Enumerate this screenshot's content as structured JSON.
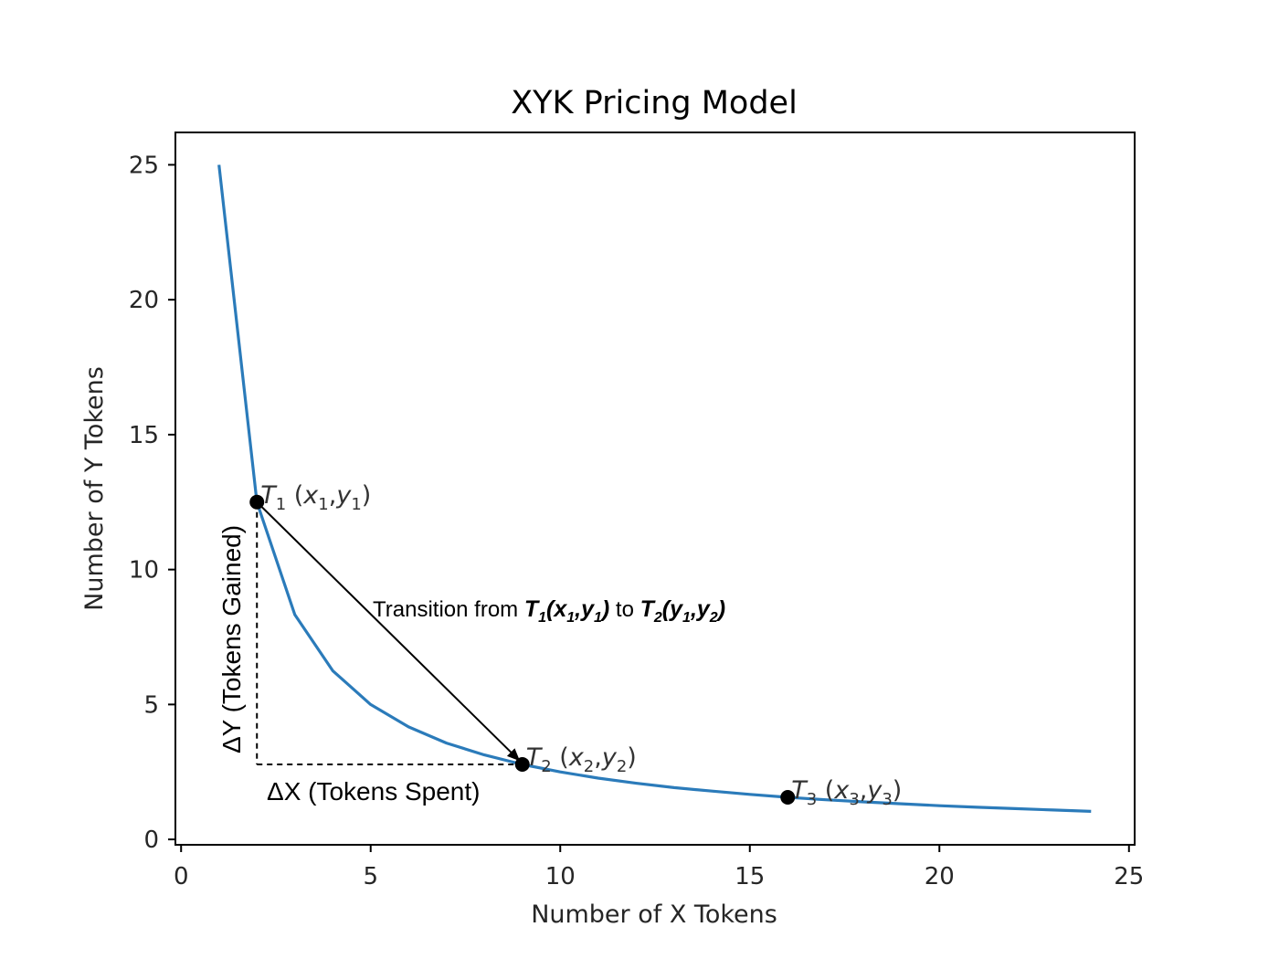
{
  "chart_data": {
    "type": "line",
    "title": "XYK Pricing Model",
    "xlabel": "Number of X Tokens",
    "ylabel": "Number of Y Tokens",
    "xlim": [
      -0.15,
      25.15
    ],
    "ylim": [
      -0.2,
      26.2
    ],
    "xticks": [
      "0",
      "5",
      "10",
      "15",
      "20",
      "25"
    ],
    "yticks": [
      "0",
      "5",
      "10",
      "15",
      "20",
      "25"
    ],
    "grid": false,
    "colors": {
      "curve": "#2b7bba",
      "points": "#000000"
    },
    "series": [
      {
        "k": 25,
        "x": [
          1,
          2,
          3,
          4,
          5,
          6,
          7,
          8,
          9,
          10,
          11,
          12,
          13,
          14,
          15,
          16,
          17,
          18,
          19,
          20,
          21,
          22,
          23,
          24
        ],
        "y": [
          25,
          12.5,
          8.33,
          6.25,
          5,
          4.17,
          3.57,
          3.13,
          2.78,
          2.5,
          2.27,
          2.08,
          1.92,
          1.79,
          1.67,
          1.56,
          1.47,
          1.39,
          1.32,
          1.25,
          1.19,
          1.14,
          1.09,
          1.04
        ]
      }
    ],
    "points": [
      {
        "x": 2,
        "y": 12.5,
        "name": "T",
        "sub": "1",
        "coord_a": "x",
        "sub_a": "1",
        "coord_b": "y",
        "sub_b": "1"
      },
      {
        "x": 9,
        "y": 2.78,
        "name": "T",
        "sub": "2",
        "coord_a": "x",
        "sub_a": "2",
        "coord_b": "y",
        "sub_b": "2"
      },
      {
        "x": 16,
        "y": 1.56,
        "name": "T",
        "sub": "3",
        "coord_a": "x",
        "sub_a": "3",
        "coord_b": "y",
        "sub_b": "3"
      }
    ],
    "annotations": {
      "transition_prefix": "Transition from ",
      "transition_from": "T",
      "transition_from_sub": "1",
      "transition_from_args_open": "(x",
      "transition_from_args_sub1": "1",
      "transition_from_args_mid": ",y",
      "transition_from_args_sub2": "1",
      "transition_from_args_close": ")",
      "transition_mid": " to ",
      "transition_to": "T",
      "transition_to_sub": "2",
      "transition_to_args_open": "(y",
      "transition_to_args_sub1": "1",
      "transition_to_args_mid": ",y",
      "transition_to_args_sub2": "2",
      "transition_to_args_close": ")",
      "delta_x": "ΔX (Tokens Spent)",
      "delta_y": "ΔY (Tokens Gained)"
    }
  }
}
